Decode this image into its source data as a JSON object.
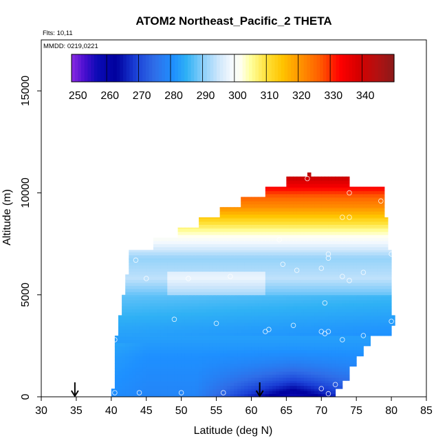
{
  "chart_data": {
    "type": "heatmap",
    "title": "ATOM2 Northeast_Pacific_2 THETA",
    "annotations": {
      "flights": "Flts: 10,11",
      "dates": "MMDD: 0219,0221"
    },
    "xlabel": "Latitude (deg N)",
    "ylabel": "Altitude (m)",
    "xlim": [
      30,
      85
    ],
    "ylim": [
      0,
      17500
    ],
    "x_ticks": [
      "30",
      "35",
      "40",
      "45",
      "50",
      "55",
      "60",
      "65",
      "70",
      "75",
      "80",
      "85"
    ],
    "y_ticks": [
      "0",
      "5000",
      "10000",
      "15000"
    ],
    "colorbar": {
      "range": [
        248,
        349
      ],
      "ticks": [
        "250",
        "260",
        "270",
        "280",
        "290",
        "300",
        "310",
        "320",
        "330",
        "340"
      ],
      "tick_values": [
        250,
        260,
        270,
        280,
        290,
        300,
        310,
        320,
        330,
        340
      ],
      "divider_values": [
        259,
        269,
        279,
        289,
        299,
        309,
        319,
        329,
        339
      ],
      "colors": [
        {
          "v": 248,
          "c": "#8a2be2"
        },
        {
          "v": 252,
          "c": "#4b0fd0"
        },
        {
          "v": 256,
          "c": "#0b0bb5"
        },
        {
          "v": 262,
          "c": "#00009e"
        },
        {
          "v": 268,
          "c": "#1a3fd6"
        },
        {
          "v": 274,
          "c": "#2f6ee8"
        },
        {
          "v": 280,
          "c": "#1e90ff"
        },
        {
          "v": 284,
          "c": "#2fb1f5"
        },
        {
          "v": 289,
          "c": "#87cefa"
        },
        {
          "v": 294,
          "c": "#cde6fb"
        },
        {
          "v": 298,
          "c": "#f4f9fe"
        },
        {
          "v": 301,
          "c": "#fffff0"
        },
        {
          "v": 304,
          "c": "#ffffa0"
        },
        {
          "v": 309,
          "c": "#ffe23a"
        },
        {
          "v": 314,
          "c": "#ffc400"
        },
        {
          "v": 320,
          "c": "#ff9000"
        },
        {
          "v": 326,
          "c": "#ff5a00"
        },
        {
          "v": 332,
          "c": "#ff0000"
        },
        {
          "v": 338,
          "c": "#d40000"
        },
        {
          "v": 343,
          "c": "#b80f0f"
        },
        {
          "v": 349,
          "c": "#8b1a1a"
        }
      ]
    },
    "coverage": {
      "rows": [
        {
          "z0": 0,
          "z1": 400,
          "lat0": 40,
          "lat1": 72
        },
        {
          "z0": 400,
          "z1": 800,
          "lat0": 40.5,
          "lat1": 73
        },
        {
          "z0": 800,
          "z1": 1500,
          "lat0": 40.5,
          "lat1": 74
        },
        {
          "z0": 1500,
          "z1": 2000,
          "lat0": 40.5,
          "lat1": 75
        },
        {
          "z0": 2000,
          "z1": 2500,
          "lat0": 40.5,
          "lat1": 76
        },
        {
          "z0": 2500,
          "z1": 3000,
          "lat0": 40.5,
          "lat1": 77
        },
        {
          "z0": 3000,
          "z1": 3500,
          "lat0": 41,
          "lat1": 80
        },
        {
          "z0": 3500,
          "z1": 4000,
          "lat0": 41,
          "lat1": 80.5
        },
        {
          "z0": 4000,
          "z1": 5000,
          "lat0": 41.5,
          "lat1": 80
        },
        {
          "z0": 5000,
          "z1": 6000,
          "lat0": 42,
          "lat1": 80
        },
        {
          "z0": 6000,
          "z1": 6800,
          "lat0": 42.5,
          "lat1": 80
        },
        {
          "z0": 6800,
          "z1": 7200,
          "lat0": 42.5,
          "lat1": 80
        },
        {
          "z0": 7200,
          "z1": 7800,
          "lat0": 46,
          "lat1": 79.5
        },
        {
          "z0": 7800,
          "z1": 8300,
          "lat0": 49.5,
          "lat1": 79.5
        },
        {
          "z0": 8300,
          "z1": 8800,
          "lat0": 52.5,
          "lat1": 79.5
        },
        {
          "z0": 8800,
          "z1": 9300,
          "lat0": 55.5,
          "lat1": 79
        },
        {
          "z0": 9300,
          "z1": 9800,
          "lat0": 58.5,
          "lat1": 79
        },
        {
          "z0": 9800,
          "z1": 10300,
          "lat0": 62,
          "lat1": 79
        },
        {
          "z0": 10300,
          "z1": 10800,
          "lat0": 65,
          "lat1": 74
        },
        {
          "z0": 10800,
          "z1": 11000,
          "lat0": 68,
          "lat1": 68.5
        }
      ],
      "theta_profile": [
        {
          "z": 0,
          "t": 278
        },
        {
          "z": 2000,
          "t": 280
        },
        {
          "z": 3500,
          "t": 283
        },
        {
          "z": 5000,
          "t": 287
        },
        {
          "z": 5800,
          "t": 293
        },
        {
          "z": 6800,
          "t": 290
        },
        {
          "z": 7400,
          "t": 296
        },
        {
          "z": 7800,
          "t": 300
        },
        {
          "z": 8300,
          "t": 306
        },
        {
          "z": 8800,
          "t": 313
        },
        {
          "z": 9300,
          "t": 320
        },
        {
          "z": 9800,
          "t": 325
        },
        {
          "z": 10300,
          "t": 333
        },
        {
          "z": 10800,
          "t": 340
        },
        {
          "z": 11000,
          "t": 344
        }
      ],
      "cold_pool": {
        "lat_center": 66,
        "z_max": 2600,
        "depth_k": 22
      }
    },
    "observations": [
      [
        40.5,
        200
      ],
      [
        44,
        200
      ],
      [
        50,
        200
      ],
      [
        56,
        200
      ],
      [
        70,
        400
      ],
      [
        71,
        150
      ],
      [
        72,
        600
      ],
      [
        40.5,
        2800
      ],
      [
        49,
        3800
      ],
      [
        55,
        3600
      ],
      [
        62,
        3200
      ],
      [
        62.5,
        3300
      ],
      [
        66,
        3500
      ],
      [
        70,
        3200
      ],
      [
        70.5,
        3100
      ],
      [
        71,
        3200
      ],
      [
        73,
        2800
      ],
      [
        76,
        3000
      ],
      [
        80,
        3700
      ],
      [
        70.5,
        4600
      ],
      [
        43.5,
        6700
      ],
      [
        45,
        5800
      ],
      [
        51,
        5800
      ],
      [
        57,
        5900
      ],
      [
        64.5,
        6500
      ],
      [
        66.5,
        6200
      ],
      [
        70,
        6300
      ],
      [
        71,
        7000
      ],
      [
        71,
        6800
      ],
      [
        73,
        5900
      ],
      [
        74,
        5700
      ],
      [
        76,
        6100
      ],
      [
        80,
        7000
      ],
      [
        64,
        7700
      ],
      [
        73,
        8800
      ],
      [
        74,
        8800
      ],
      [
        78.5,
        9600
      ],
      [
        74,
        10000
      ],
      [
        68,
        10700
      ]
    ],
    "arrows": [
      34.8,
      61.2
    ]
  }
}
